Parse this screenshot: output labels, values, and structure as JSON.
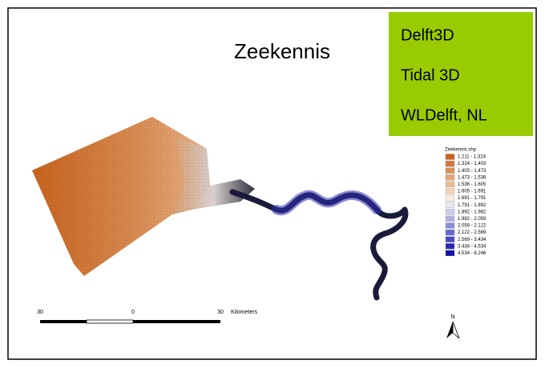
{
  "map": {
    "title": "Zeekennis",
    "info_box": {
      "lines": [
        "Delft3D",
        "Tidal 3D",
        "WLDelft, NL"
      ],
      "color": "#99cc00"
    },
    "legend": {
      "title": "Zeekennis.shp",
      "items": [
        {
          "label": "1.211 - 1.324",
          "color": "#c8641e"
        },
        {
          "label": "1.324 - 1.403",
          "color": "#d27a3c"
        },
        {
          "label": "1.403 - 1.473",
          "color": "#dc9058"
        },
        {
          "label": "1.473 - 1.536",
          "color": "#e4a676"
        },
        {
          "label": "1.536 - 1.605",
          "color": "#ecbc96"
        },
        {
          "label": "1.605 - 1.691",
          "color": "#f2d2b8"
        },
        {
          "label": "1.691 - 1.791",
          "color": "#f8ece2"
        },
        {
          "label": "1.791 - 1.892",
          "color": "#e6e6f4"
        },
        {
          "label": "1.892 - 1.982",
          "color": "#ccccec"
        },
        {
          "label": "1.982 - 2.059",
          "color": "#b0b0e2"
        },
        {
          "label": "2.059 - 2.122",
          "color": "#8e8ed8"
        },
        {
          "label": "2.122 - 2.569",
          "color": "#6a6acc"
        },
        {
          "label": "2.569 - 3.434",
          "color": "#4848c0"
        },
        {
          "label": "3.434 - 4.534",
          "color": "#2a2ab4"
        },
        {
          "label": "4.534 - 6.246",
          "color": "#1010a6"
        }
      ]
    },
    "scale_bar": {
      "labels": [
        "30",
        "0",
        "30"
      ],
      "unit": "Kilometers"
    },
    "north_label": "N"
  }
}
